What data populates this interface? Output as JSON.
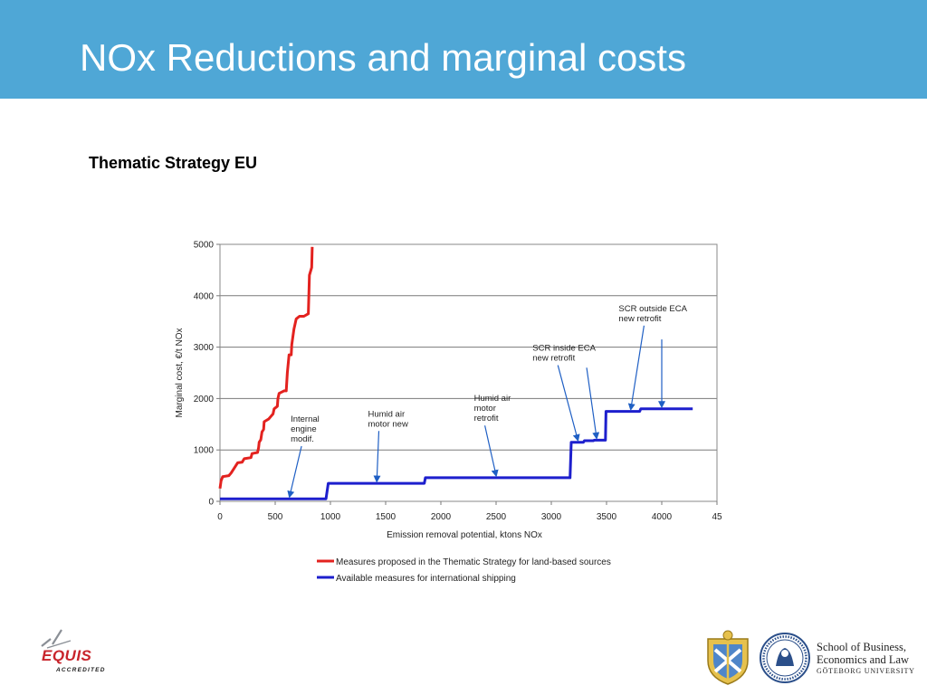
{
  "slide": {
    "title": "NOx Reductions and marginal costs",
    "subtitle": "Thematic Strategy EU"
  },
  "colors": {
    "header": "#4fa7d6",
    "land_series": "#e3221f",
    "shipping_series": "#1d1fcd",
    "annotation_arrow": "#1f5fc4"
  },
  "chart_data": {
    "type": "line",
    "xlabel": "Emission removal potential, ktons NOx",
    "ylabel": "Marginal cost, €/t NOx",
    "xlim": [
      0,
      4500
    ],
    "ylim": [
      0,
      5000
    ],
    "x_ticks": [
      "0",
      "500",
      "1000",
      "1500",
      "2000",
      "2500",
      "3000",
      "3500",
      "4000",
      "45"
    ],
    "y_ticks": [
      "0",
      "1000",
      "2000",
      "3000",
      "4000",
      "5000"
    ],
    "grid": "horizontal",
    "legend_position": "bottom",
    "series": [
      {
        "name": "Measures proposed in the Thematic Strategy for land-based sources",
        "color": "#e3221f",
        "points": [
          [
            0,
            250
          ],
          [
            10,
            400
          ],
          [
            25,
            480
          ],
          [
            80,
            500
          ],
          [
            100,
            550
          ],
          [
            130,
            650
          ],
          [
            160,
            750
          ],
          [
            200,
            760
          ],
          [
            220,
            830
          ],
          [
            280,
            850
          ],
          [
            290,
            930
          ],
          [
            340,
            950
          ],
          [
            350,
            1050
          ],
          [
            355,
            1150
          ],
          [
            370,
            1200
          ],
          [
            380,
            1350
          ],
          [
            395,
            1400
          ],
          [
            400,
            1550
          ],
          [
            440,
            1600
          ],
          [
            460,
            1650
          ],
          [
            480,
            1700
          ],
          [
            490,
            1800
          ],
          [
            520,
            1850
          ],
          [
            525,
            2000
          ],
          [
            535,
            2100
          ],
          [
            580,
            2150
          ],
          [
            600,
            2150
          ],
          [
            610,
            2500
          ],
          [
            625,
            2850
          ],
          [
            645,
            2850
          ],
          [
            650,
            3050
          ],
          [
            670,
            3350
          ],
          [
            690,
            3550
          ],
          [
            720,
            3600
          ],
          [
            760,
            3600
          ],
          [
            800,
            3650
          ],
          [
            810,
            4400
          ],
          [
            830,
            4550
          ],
          [
            835,
            4950
          ]
        ]
      },
      {
        "name": "Available measures for international shipping",
        "color": "#1d1fcd",
        "points": [
          [
            0,
            50
          ],
          [
            960,
            50
          ],
          [
            980,
            350
          ],
          [
            1850,
            350
          ],
          [
            1860,
            460
          ],
          [
            3170,
            460
          ],
          [
            3180,
            1150
          ],
          [
            3290,
            1150
          ],
          [
            3300,
            1180
          ],
          [
            3380,
            1180
          ],
          [
            3390,
            1190
          ],
          [
            3490,
            1190
          ],
          [
            3495,
            1750
          ],
          [
            3800,
            1750
          ],
          [
            3810,
            1800
          ],
          [
            4280,
            1800
          ]
        ]
      }
    ],
    "annotations": [
      {
        "text": [
          "Internal",
          "engine",
          "modif."
        ],
        "x": 640,
        "y": 1550,
        "arrow_to": [
          630,
          60
        ]
      },
      {
        "text": [
          "Humid air",
          "motor new"
        ],
        "x": 1340,
        "y": 1650,
        "arrow_to": [
          1420,
          360
        ]
      },
      {
        "text": [
          "Humid air",
          "motor",
          "retrofit"
        ],
        "x": 2300,
        "y": 1950,
        "arrow_to": [
          2500,
          470
        ]
      },
      {
        "text": [
          "SCR inside ECA",
          "new    retrofit"
        ],
        "x": 2830,
        "y": 2930,
        "arrow_to": [
          3240,
          1160
        ]
      },
      {
        "text": [],
        "x": 3320,
        "y": 2600,
        "arrow_to": [
          3410,
          1200
        ]
      },
      {
        "text": [
          "SCR outside ECA",
          "new   retrofit"
        ],
        "x": 3610,
        "y": 3700,
        "arrow_to": [
          3720,
          1760
        ]
      },
      {
        "text": [],
        "x": 4000,
        "y": 3150,
        "arrow_to": [
          4000,
          1810
        ]
      }
    ]
  }
}
